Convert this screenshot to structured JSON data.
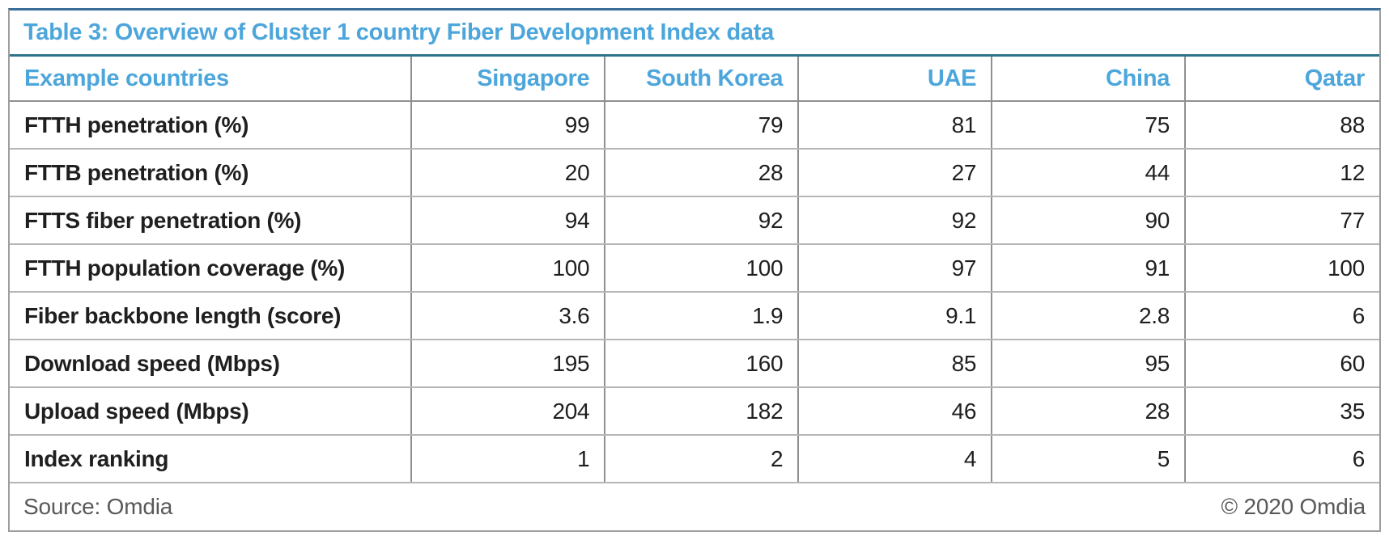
{
  "colors": {
    "accent_blue_text": "#4da6db",
    "top_border": "#3a6f99",
    "title_rule_teal": "#2f7388",
    "grid_line_gray": "#909090",
    "footer_text_gray": "#595959"
  },
  "table": {
    "title": "Table 3: Overview of Cluster 1 country Fiber Development Index data",
    "header": {
      "label": "Example countries",
      "countries": [
        "Singapore",
        "South Korea",
        "UAE",
        "China",
        "Qatar"
      ]
    },
    "rows": [
      {
        "label": "FTTH penetration (%)",
        "values": [
          "99",
          "79",
          "81",
          "75",
          "88"
        ]
      },
      {
        "label": "FTTB penetration (%)",
        "values": [
          "20",
          "28",
          "27",
          "44",
          "12"
        ]
      },
      {
        "label": "FTTS fiber penetration (%)",
        "values": [
          "94",
          "92",
          "92",
          "90",
          "77"
        ]
      },
      {
        "label": "FTTH population coverage (%)",
        "values": [
          "100",
          "100",
          "97",
          "91",
          "100"
        ]
      },
      {
        "label": "Fiber backbone length (score)",
        "values": [
          "3.6",
          "1.9",
          "9.1",
          "2.8",
          "6"
        ]
      },
      {
        "label": "Download speed (Mbps)",
        "values": [
          "195",
          "160",
          "85",
          "95",
          "60"
        ]
      },
      {
        "label": "Upload speed (Mbps)",
        "values": [
          "204",
          "182",
          "46",
          "28",
          "35"
        ]
      },
      {
        "label": "Index ranking",
        "values": [
          "1",
          "2",
          "4",
          "5",
          "6"
        ]
      }
    ],
    "footer": {
      "source": "Source: Omdia",
      "copyright": "© 2020 Omdia"
    }
  },
  "chart_data": {
    "type": "table",
    "title": "Table 3: Overview of Cluster 1 country Fiber Development Index data",
    "categories": [
      "Singapore",
      "South Korea",
      "UAE",
      "China",
      "Qatar"
    ],
    "row_header_label": "Example countries",
    "series": [
      {
        "name": "FTTH penetration (%)",
        "values": [
          99,
          79,
          81,
          75,
          88
        ]
      },
      {
        "name": "FTTB penetration (%)",
        "values": [
          20,
          28,
          27,
          44,
          12
        ]
      },
      {
        "name": "FTTS fiber penetration (%)",
        "values": [
          94,
          92,
          92,
          90,
          77
        ]
      },
      {
        "name": "FTTH population coverage (%)",
        "values": [
          100,
          100,
          97,
          91,
          100
        ]
      },
      {
        "name": "Fiber backbone length (score)",
        "values": [
          3.6,
          1.9,
          9.1,
          2.8,
          6
        ]
      },
      {
        "name": "Download speed (Mbps)",
        "values": [
          195,
          160,
          85,
          95,
          60
        ]
      },
      {
        "name": "Upload speed (Mbps)",
        "values": [
          204,
          182,
          46,
          28,
          35
        ]
      },
      {
        "name": "Index ranking",
        "values": [
          1,
          2,
          4,
          5,
          6
        ]
      }
    ],
    "source": "Source: Omdia",
    "copyright": "© 2020 Omdia"
  }
}
